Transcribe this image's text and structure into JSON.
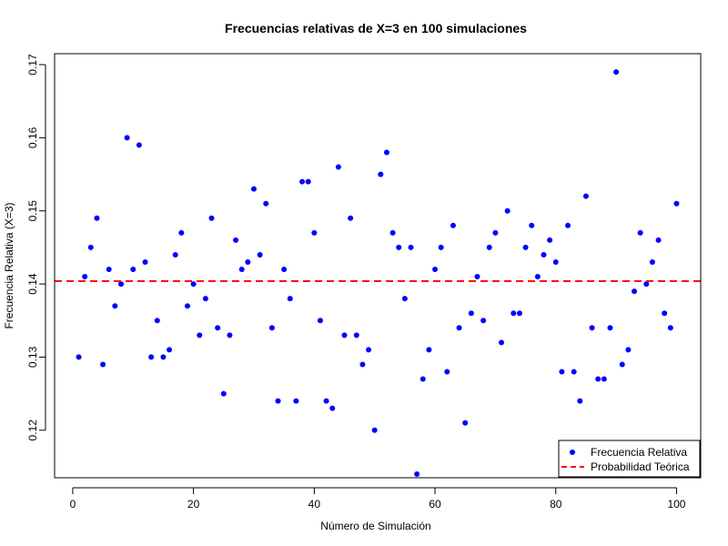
{
  "chart_data": {
    "type": "scatter",
    "title": "Frecuencias relativas de X=3 en 100 simulaciones",
    "xlabel": "Número de Simulación",
    "ylabel": "Frecuencia Relativa (X=3)",
    "xlim": [
      -3.0,
      104.0
    ],
    "ylim": [
      0.1135,
      0.1715
    ],
    "xticks": [
      0,
      20,
      40,
      60,
      80,
      100
    ],
    "yticks": [
      0.12,
      0.13,
      0.14,
      0.15,
      0.16,
      0.17
    ],
    "xtick_labels": [
      "0",
      "20",
      "40",
      "60",
      "80",
      "100"
    ],
    "ytick_labels": [
      "0.12",
      "0.13",
      "0.14",
      "0.15",
      "0.16",
      "0.17"
    ],
    "grid": false,
    "legend_position": "bottom-right",
    "series": [
      {
        "name": "Frecuencia Relativa",
        "color": "#0000ff",
        "marker": "filled-circle",
        "x": [
          1,
          2,
          3,
          4,
          5,
          6,
          7,
          8,
          9,
          10,
          11,
          12,
          13,
          14,
          15,
          16,
          17,
          18,
          19,
          20,
          21,
          22,
          23,
          24,
          25,
          26,
          27,
          28,
          29,
          30,
          31,
          32,
          33,
          34,
          35,
          36,
          37,
          38,
          39,
          40,
          41,
          42,
          43,
          44,
          45,
          46,
          47,
          48,
          49,
          50,
          51,
          52,
          53,
          54,
          55,
          56,
          57,
          58,
          59,
          60,
          61,
          62,
          63,
          64,
          65,
          66,
          67,
          68,
          69,
          70,
          71,
          72,
          73,
          74,
          75,
          76,
          77,
          78,
          79,
          80,
          81,
          82,
          83,
          84,
          85,
          86,
          87,
          88,
          89,
          90,
          91,
          92,
          93,
          94,
          95,
          96,
          97,
          98,
          99,
          100
        ],
        "values": [
          0.13,
          0.141,
          0.145,
          0.149,
          0.129,
          0.142,
          0.137,
          0.14,
          0.16,
          0.142,
          0.159,
          0.143,
          0.13,
          0.135,
          0.13,
          0.131,
          0.144,
          0.147,
          0.137,
          0.14,
          0.133,
          0.138,
          0.149,
          0.134,
          0.125,
          0.133,
          0.146,
          0.142,
          0.143,
          0.153,
          0.144,
          0.151,
          0.134,
          0.124,
          0.142,
          0.138,
          0.124,
          0.154,
          0.154,
          0.147,
          0.135,
          0.124,
          0.123,
          0.156,
          0.133,
          0.149,
          0.133,
          0.129,
          0.131,
          0.12,
          0.155,
          0.158,
          0.147,
          0.145,
          0.138,
          0.145,
          0.114,
          0.127,
          0.131,
          0.142,
          0.145,
          0.128,
          0.148,
          0.134,
          0.121,
          0.136,
          0.141,
          0.135,
          0.145,
          0.147,
          0.132,
          0.15,
          0.136,
          0.136,
          0.145,
          0.148,
          0.141,
          0.144,
          0.146,
          0.143,
          0.128,
          0.148,
          0.128,
          0.124,
          0.152,
          0.134,
          0.127,
          0.127,
          0.134,
          0.169,
          0.129,
          0.131,
          0.139,
          0.147,
          0.14,
          0.143,
          0.146,
          0.136,
          0.134,
          0.151
        ]
      },
      {
        "name": "Probabilidad Teórica",
        "color": "#ff0000",
        "style": "dashed-horizontal-line",
        "value": 0.1404
      }
    ]
  }
}
